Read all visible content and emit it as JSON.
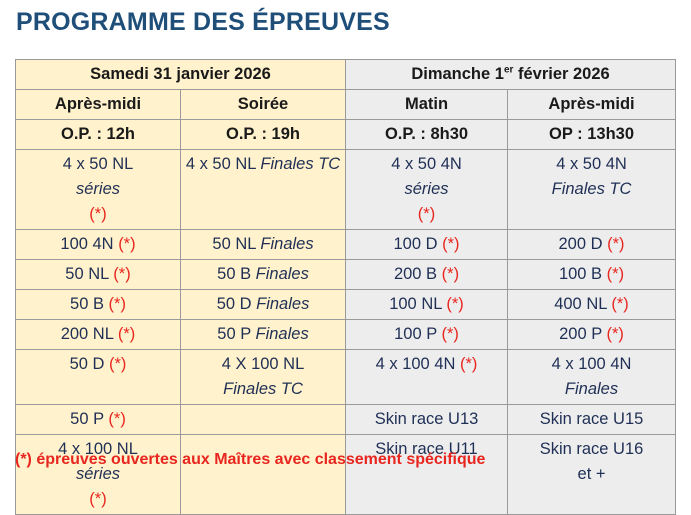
{
  "title": "PROGRAMME DES ÉPREUVES",
  "days": {
    "saturday": "Samedi 31 janvier 2026",
    "sunday_prefix": "Dimanche 1",
    "sunday_sup": "er",
    "sunday_suffix": " février 2026"
  },
  "sessions": [
    "Après-midi",
    "Soirée",
    "Matin",
    "Après-midi"
  ],
  "op_times": [
    "O.P. : 12h",
    "O.P. : 19h",
    "O.P. : 8h30",
    "OP : 13h30"
  ],
  "star": "(*)",
  "rows": [
    [
      {
        "a": "4 x 50 NL ",
        "b": "séries",
        "star": true,
        "br": true
      },
      {
        "a": "4 x 50 NL ",
        "b": "Finales TC",
        "star": false
      },
      {
        "a": "4 x 50 4N ",
        "b": "séries",
        "star": true,
        "br": true
      },
      {
        "a": "4 x 50 4N",
        "b": "Finales TC",
        "star": false,
        "br": true
      }
    ],
    [
      {
        "a": "100 4N ",
        "b": "",
        "star": true
      },
      {
        "a": "50 NL ",
        "b": "Finales",
        "star": false
      },
      {
        "a": "100 D ",
        "b": "",
        "star": true
      },
      {
        "a": "200 D ",
        "b": "",
        "star": true
      }
    ],
    [
      {
        "a": "50 NL ",
        "b": "",
        "star": true
      },
      {
        "a": "50 B ",
        "b": "Finales",
        "star": false
      },
      {
        "a": "200 B ",
        "b": "",
        "star": true
      },
      {
        "a": "100 B ",
        "b": "",
        "star": true
      }
    ],
    [
      {
        "a": "50 B ",
        "b": "",
        "star": true
      },
      {
        "a": "50 D ",
        "b": "Finales",
        "star": false
      },
      {
        "a": "100 NL ",
        "b": "",
        "star": true
      },
      {
        "a": "400 NL ",
        "b": "",
        "star": true
      }
    ],
    [
      {
        "a": "200 NL ",
        "b": "",
        "star": true
      },
      {
        "a": "50 P ",
        "b": "Finales",
        "star": false
      },
      {
        "a": "100 P ",
        "b": "",
        "star": true
      },
      {
        "a": "200 P ",
        "b": "",
        "star": true
      }
    ],
    [
      {
        "a": "50 D ",
        "b": "",
        "star": true
      },
      {
        "a": "4 X 100 NL",
        "b": "Finales TC",
        "star": false,
        "br": true
      },
      {
        "a": "4 x 100 4N ",
        "b": "",
        "star": true
      },
      {
        "a": "4 x 100 4N",
        "b": "Finales",
        "star": false,
        "br": true
      }
    ],
    [
      {
        "a": "50 P ",
        "b": "",
        "star": true
      },
      {
        "a": "",
        "b": "",
        "star": false
      },
      {
        "a": "Skin race U13",
        "b": "",
        "star": false
      },
      {
        "a": "Skin race U15",
        "b": "",
        "star": false
      }
    ],
    [
      {
        "a": "4 x 100 NL ",
        "b": "séries",
        "star": true,
        "br": true
      },
      {
        "a": "",
        "b": "",
        "star": false
      },
      {
        "a": "Skin race U11",
        "b": "",
        "star": false
      },
      {
        "a": "Skin race U16",
        "b": "et +",
        "star": false,
        "br": true,
        "plain": true
      }
    ]
  ],
  "footnote": "(*) épreuves ouvertes aux Maîtres avec classement spécifique",
  "colors": {
    "title": "#1f4e79",
    "saturday_bg": "#fff2cc",
    "sunday_bg": "#ededed",
    "star": "#e8261f",
    "border": "#9a9a9a"
  }
}
